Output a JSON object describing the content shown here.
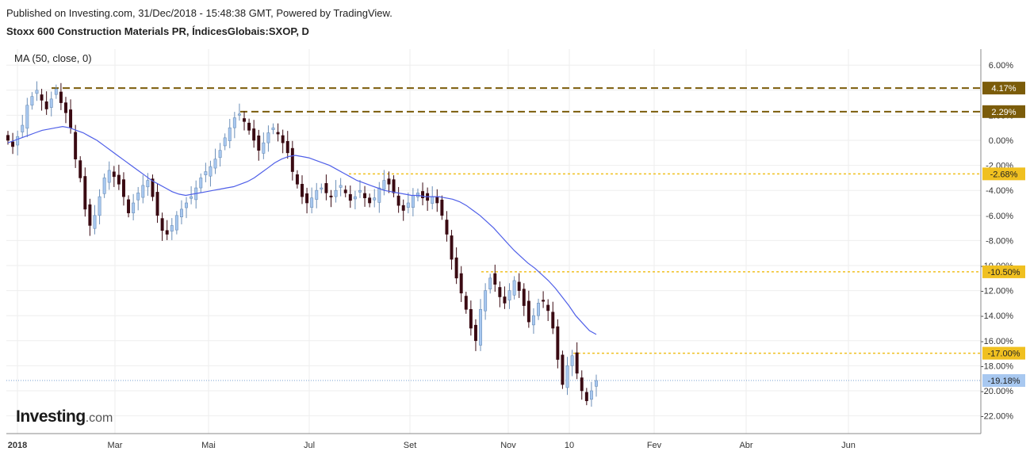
{
  "header": {
    "published": "Published on Investing.com, 31/Dec/2018 - 15:48:38 GMT, Powered by TradingView.",
    "title": "Stoxx 600 Construction Materials PR, ÍndicesGlobais:SXOP, D"
  },
  "indicator_label": "MA (50, close, 0)",
  "logo": {
    "main": "Investing",
    "suffix": ".com"
  },
  "colors": {
    "up_candle": "#a8c8f0",
    "down_candle": "#3a0a12",
    "ma_line": "#4f5fe8",
    "level_dark": "#7b5c0a",
    "level_yellow": "#f0c020",
    "last_price": "#a8c8f0",
    "grid": "#eeeeee"
  },
  "chart_data": {
    "type": "candlestick",
    "title": "Stoxx 600 Construction Materials PR, ÍndicesGlobais:SXOP, D",
    "x_tick_labels": [
      "2018",
      "Mar",
      "Mai",
      "Jul",
      "Set",
      "Nov",
      "10",
      "Fev",
      "Abr",
      "Jun"
    ],
    "y_tick_labels": [
      "6.00%",
      "4.00%",
      "2.00%",
      "0.00%",
      "-2.00%",
      "-4.00%",
      "-6.00%",
      "-8.00%",
      "-10.00%",
      "-12.00%",
      "-14.00%",
      "-16.00%",
      "-18.00%",
      "-20.00%",
      "-22.00%"
    ],
    "y_unit": "%",
    "ylim": [
      -23,
      7
    ],
    "grid": true,
    "levels": [
      {
        "value": 4.17,
        "label": "4.17%",
        "style": "dark"
      },
      {
        "value": 2.29,
        "label": "2.29%",
        "style": "dark"
      },
      {
        "value": -2.68,
        "label": "-2.68%",
        "style": "yellow"
      },
      {
        "value": -10.5,
        "label": "-10.50%",
        "style": "yellow"
      },
      {
        "value": -17.0,
        "label": "-17.00%",
        "style": "yellow"
      }
    ],
    "last_price": {
      "value": -19.18,
      "label": "-19.18%"
    },
    "close_series": [
      0.0,
      -0.5,
      0.3,
      1.2,
      2.8,
      3.5,
      4.0,
      3.2,
      2.5,
      3.3,
      4.1,
      3.0,
      2.2,
      1.0,
      -1.5,
      -3.0,
      -5.5,
      -6.8,
      -6.0,
      -4.5,
      -3.0,
      -2.4,
      -2.9,
      -3.5,
      -4.5,
      -5.8,
      -5.0,
      -4.2,
      -3.6,
      -3.2,
      -4.5,
      -6.0,
      -7.2,
      -7.5,
      -6.8,
      -6.0,
      -5.5,
      -5.0,
      -4.5,
      -3.8,
      -3.0,
      -2.5,
      -2.1,
      -1.5,
      -0.8,
      0.2,
      1.0,
      1.8,
      2.1,
      1.5,
      0.8,
      0.0,
      -0.8,
      -0.2,
      0.6,
      1.0,
      0.5,
      -0.2,
      -1.0,
      -2.5,
      -3.5,
      -4.5,
      -5.0,
      -4.6,
      -4.0,
      -3.8,
      -4.2,
      -4.5,
      -4.0,
      -3.6,
      -4.2,
      -4.8,
      -4.5,
      -4.0,
      -4.6,
      -5.0,
      -4.6,
      -3.8,
      -3.2,
      -3.5,
      -4.2,
      -5.2,
      -5.6,
      -5.0,
      -4.4,
      -4.2,
      -4.6,
      -4.8,
      -4.5,
      -5.0,
      -6.0,
      -7.5,
      -9.5,
      -11.0,
      -12.2,
      -13.5,
      -15.0,
      -16.0,
      -13.5,
      -12.0,
      -11.0,
      -11.5,
      -12.5,
      -13.0,
      -12.0,
      -11.2,
      -12.0,
      -13.2,
      -14.5,
      -14.0,
      -13.0,
      -12.8,
      -13.6,
      -15.0,
      -17.5,
      -19.5,
      -18.0,
      -17.2,
      -18.6,
      -20.0,
      -20.8,
      -20.0,
      -19.18
    ],
    "ma_series": [
      -0.2,
      0.0,
      0.2,
      0.4,
      0.6,
      0.8,
      0.9,
      1.0,
      1.1,
      1.0,
      0.8,
      0.6,
      0.3,
      0.0,
      -0.4,
      -0.8,
      -1.2,
      -1.6,
      -2.0,
      -2.4,
      -2.8,
      -3.2,
      -3.5,
      -3.8,
      -4.1,
      -4.3,
      -4.4,
      -4.3,
      -4.2,
      -4.1,
      -4.0,
      -3.9,
      -3.8,
      -3.7,
      -3.5,
      -3.3,
      -3.0,
      -2.6,
      -2.2,
      -1.8,
      -1.5,
      -1.3,
      -1.2,
      -1.3,
      -1.4,
      -1.6,
      -1.8,
      -2.0,
      -2.3,
      -2.6,
      -2.9,
      -3.2,
      -3.4,
      -3.6,
      -3.8,
      -4.0,
      -4.1,
      -4.2,
      -4.3,
      -4.4,
      -4.4,
      -4.5,
      -4.5,
      -4.5,
      -4.6,
      -4.7,
      -4.9,
      -5.2,
      -5.6,
      -6.0,
      -6.5,
      -7.0,
      -7.6,
      -8.2,
      -8.8,
      -9.3,
      -9.8,
      -10.2,
      -10.7,
      -11.2,
      -11.8,
      -12.5,
      -13.2,
      -14.0,
      -14.6,
      -15.2,
      -15.5
    ]
  }
}
